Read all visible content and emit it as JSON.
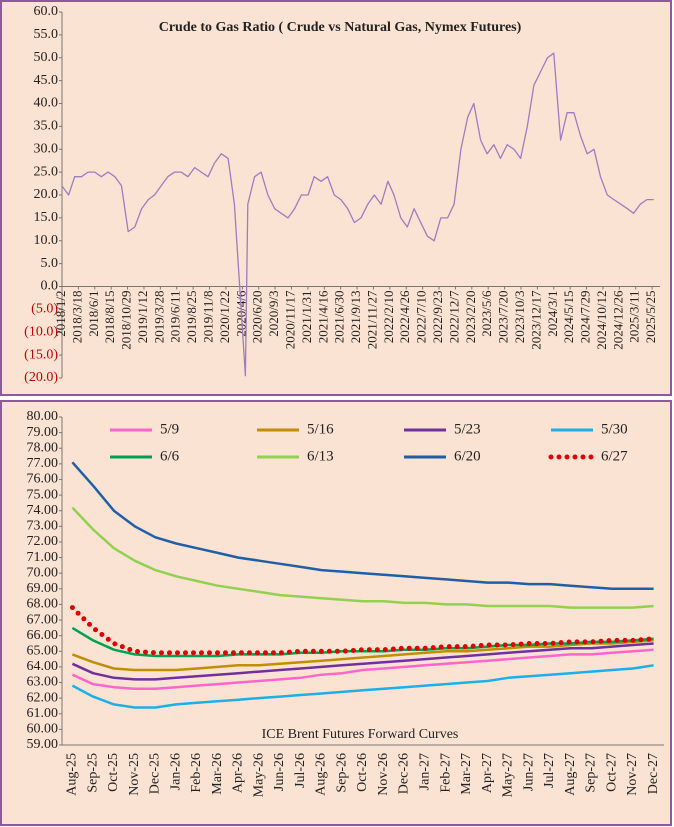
{
  "chart_data": [
    {
      "type": "line",
      "title": "Crude to Gas Ratio ( Crude vs Natural Gas, Nymex Futures)",
      "x": [
        "2018/1/1",
        "2018/2/1",
        "2018/3/1",
        "2018/4/1",
        "2018/5/1",
        "2018/6/1",
        "2018/7/1",
        "2018/8/1",
        "2018/9/1",
        "2018/10/1",
        "2018/11/1",
        "2018/12/1",
        "2019/1/1",
        "2019/2/1",
        "2019/3/1",
        "2019/4/1",
        "2019/5/1",
        "2019/6/1",
        "2019/7/1",
        "2019/8/1",
        "2019/9/1",
        "2019/10/1",
        "2019/11/1",
        "2019/12/1",
        "2020/1/1",
        "2020/2/1",
        "2020/3/1",
        "2020/4/20",
        "2020/5/1",
        "2020/6/1",
        "2020/7/1",
        "2020/8/1",
        "2020/9/1",
        "2020/10/1",
        "2020/11/1",
        "2020/12/1",
        "2021/1/1",
        "2021/2/1",
        "2021/3/1",
        "2021/4/1",
        "2021/5/1",
        "2021/6/1",
        "2021/7/1",
        "2021/8/1",
        "2021/9/1",
        "2021/10/1",
        "2021/11/1",
        "2021/12/1",
        "2022/1/1",
        "2022/2/1",
        "2022/3/1",
        "2022/4/1",
        "2022/5/1",
        "2022/6/1",
        "2022/7/1",
        "2022/8/1",
        "2022/9/1",
        "2022/10/1",
        "2022/11/1",
        "2022/12/1",
        "2023/1/1",
        "2023/2/1",
        "2023/3/1",
        "2023/4/1",
        "2023/5/1",
        "2023/6/1",
        "2023/7/1",
        "2023/8/1",
        "2023/9/1",
        "2023/10/1",
        "2023/11/1",
        "2023/12/1",
        "2024/1/1",
        "2024/2/1",
        "2024/3/1",
        "2024/4/1",
        "2024/5/1",
        "2024/6/1",
        "2024/7/1",
        "2024/8/1",
        "2024/9/1",
        "2024/10/1",
        "2024/11/1",
        "2024/12/1",
        "2025/1/1",
        "2025/2/1",
        "2025/3/1",
        "2025/4/1",
        "2025/5/1",
        "2025/6/1"
      ],
      "series": [
        {
          "color": "#9e7cc1",
          "values": [
            22,
            20,
            24,
            24,
            25,
            25,
            24,
            25,
            24,
            22,
            12,
            13,
            17,
            19,
            20,
            22,
            24,
            25,
            25,
            24,
            26,
            25,
            24,
            27,
            29,
            28,
            18,
            -19.5,
            18,
            24,
            25,
            20,
            17,
            16,
            15,
            17,
            20,
            20,
            24,
            23,
            24,
            20,
            19,
            17,
            14,
            15,
            18,
            20,
            18,
            23,
            20,
            15,
            13,
            17,
            14,
            11,
            10,
            15,
            15,
            18,
            30,
            37,
            40,
            32,
            29,
            31,
            28,
            31,
            30,
            28,
            35,
            44,
            47,
            50,
            51,
            32,
            38,
            38,
            33,
            29,
            30,
            24,
            20,
            19,
            18,
            17,
            16,
            18,
            19,
            19
          ]
        }
      ],
      "xticks": [
        "2018/1/2",
        "2018/3/18",
        "2018/6/1",
        "2018/8/15",
        "2018/10/29",
        "2019/1/12",
        "2019/3/28",
        "2019/6/11",
        "2019/8/25",
        "2019/11/8",
        "2020/1/22",
        "2020/4/6",
        "2020/6/20",
        "2020/9/3",
        "2020/11/17",
        "2021/1/31",
        "2021/4/16",
        "2021/6/30",
        "2021/9/13",
        "2021/11/27",
        "2022/2/10",
        "2022/4/26",
        "2022/7/10",
        "2022/9/23",
        "2022/12/7",
        "2023/2/20",
        "2023/5/6",
        "2023/7/20",
        "2023/10/3",
        "2023/12/17",
        "2024/3/1",
        "2024/5/15",
        "2024/7/29",
        "2024/10/12",
        "2024/12/26",
        "2025/3/11",
        "2025/5/25"
      ],
      "xlim": [
        "2018/1/2",
        "2025/6/30"
      ],
      "ylim": [
        -20,
        60
      ],
      "yticks": [
        {
          "value": -20,
          "label": "(20.0)"
        },
        {
          "value": -15,
          "label": "(15.0)"
        },
        {
          "value": -10,
          "label": "(10.0)"
        },
        {
          "value": -5,
          "label": "(5.0)"
        },
        {
          "value": 0,
          "label": "0.0"
        },
        {
          "value": 5,
          "label": "5.0"
        },
        {
          "value": 10,
          "label": "10.0"
        },
        {
          "value": 15,
          "label": "15.0"
        },
        {
          "value": 20,
          "label": "20.0"
        },
        {
          "value": 25,
          "label": "25.0"
        },
        {
          "value": 30,
          "label": "30.0"
        },
        {
          "value": 35,
          "label": "35.0"
        },
        {
          "value": 40,
          "label": "40.0"
        },
        {
          "value": 45,
          "label": "45.0"
        },
        {
          "value": 50,
          "label": "50.0"
        },
        {
          "value": 55,
          "label": "55.0"
        },
        {
          "value": 60,
          "label": "60.0"
        }
      ],
      "negative_label_color": "#c00000"
    },
    {
      "type": "line",
      "title": "ICE Brent Futures Forward Curves",
      "categories": [
        "Aug-25",
        "Sep-25",
        "Oct-25",
        "Nov-25",
        "Dec-25",
        "Jan-26",
        "Feb-26",
        "Mar-26",
        "Apr-26",
        "May-26",
        "Jun-26",
        "Jul-26",
        "Aug-26",
        "Sep-26",
        "Oct-26",
        "Nov-26",
        "Dec-26",
        "Jan-27",
        "Feb-27",
        "Mar-27",
        "Apr-27",
        "May-27",
        "Jun-27",
        "Jul-27",
        "Aug-27",
        "Sep-27",
        "Oct-27",
        "Nov-27",
        "Dec-27"
      ],
      "series": [
        {
          "name": "5/9",
          "color": "#ff66cc",
          "values": [
            63.5,
            62.9,
            62.7,
            62.6,
            62.6,
            62.7,
            62.8,
            62.9,
            63.0,
            63.1,
            63.2,
            63.3,
            63.5,
            63.6,
            63.8,
            63.9,
            64.0,
            64.1,
            64.2,
            64.3,
            64.4,
            64.5,
            64.6,
            64.7,
            64.8,
            64.8,
            64.9,
            65.0,
            65.1
          ]
        },
        {
          "name": "5/16",
          "color": "#bf8f00",
          "values": [
            64.8,
            64.3,
            63.9,
            63.8,
            63.8,
            63.8,
            63.9,
            64.0,
            64.1,
            64.1,
            64.2,
            64.3,
            64.4,
            64.5,
            64.6,
            64.7,
            64.8,
            64.9,
            65.0,
            65.0,
            65.1,
            65.2,
            65.3,
            65.3,
            65.4,
            65.5,
            65.5,
            65.6,
            65.7
          ]
        },
        {
          "name": "5/23",
          "color": "#7030a0",
          "values": [
            64.2,
            63.6,
            63.3,
            63.2,
            63.2,
            63.3,
            63.4,
            63.5,
            63.6,
            63.7,
            63.8,
            63.9,
            64.0,
            64.1,
            64.2,
            64.3,
            64.4,
            64.5,
            64.6,
            64.7,
            64.8,
            64.9,
            65.0,
            65.1,
            65.2,
            65.2,
            65.3,
            65.4,
            65.5
          ]
        },
        {
          "name": "5/30",
          "color": "#1ab0e8",
          "values": [
            62.8,
            62.1,
            61.6,
            61.4,
            61.4,
            61.6,
            61.7,
            61.8,
            61.9,
            62.0,
            62.1,
            62.2,
            62.3,
            62.4,
            62.5,
            62.6,
            62.7,
            62.8,
            62.9,
            63.0,
            63.1,
            63.3,
            63.4,
            63.5,
            63.6,
            63.7,
            63.8,
            63.9,
            64.1
          ]
        },
        {
          "name": "6/6",
          "color": "#00a050",
          "values": [
            66.5,
            65.7,
            65.1,
            64.8,
            64.7,
            64.7,
            64.7,
            64.7,
            64.8,
            64.8,
            64.8,
            64.9,
            64.9,
            65.0,
            65.0,
            65.0,
            65.1,
            65.1,
            65.2,
            65.2,
            65.3,
            65.4,
            65.4,
            65.5,
            65.5,
            65.6,
            65.6,
            65.7,
            65.8
          ]
        },
        {
          "name": "6/13",
          "color": "#92d050",
          "values": [
            74.2,
            72.8,
            71.6,
            70.8,
            70.2,
            69.8,
            69.5,
            69.2,
            69.0,
            68.8,
            68.6,
            68.5,
            68.4,
            68.3,
            68.2,
            68.2,
            68.1,
            68.1,
            68.0,
            68.0,
            67.9,
            67.9,
            67.9,
            67.9,
            67.8,
            67.8,
            67.8,
            67.8,
            67.9
          ]
        },
        {
          "name": "6/20",
          "color": "#1f5fa8",
          "values": [
            77.1,
            75.6,
            74.0,
            73.0,
            72.3,
            71.9,
            71.6,
            71.3,
            71.0,
            70.8,
            70.6,
            70.4,
            70.2,
            70.1,
            70.0,
            69.9,
            69.8,
            69.7,
            69.6,
            69.5,
            69.4,
            69.4,
            69.3,
            69.3,
            69.2,
            69.1,
            69.0,
            69.0,
            69.0
          ]
        },
        {
          "name": "6/27",
          "color": "#e00000",
          "style": "dotted",
          "values": [
            67.8,
            66.5,
            65.5,
            65.0,
            64.9,
            64.9,
            64.9,
            64.9,
            64.9,
            64.9,
            64.9,
            65.0,
            65.0,
            65.0,
            65.1,
            65.1,
            65.2,
            65.2,
            65.3,
            65.3,
            65.4,
            65.4,
            65.5,
            65.5,
            65.6,
            65.6,
            65.7,
            65.7,
            65.8
          ]
        }
      ],
      "ylim": [
        59,
        80
      ],
      "yticks": [
        {
          "value": 59,
          "label": "59.00"
        },
        {
          "value": 60,
          "label": "60.00"
        },
        {
          "value": 61,
          "label": "61.00"
        },
        {
          "value": 62,
          "label": "62.00"
        },
        {
          "value": 63,
          "label": "63.00"
        },
        {
          "value": 64,
          "label": "64.00"
        },
        {
          "value": 65,
          "label": "65.00"
        },
        {
          "value": 66,
          "label": "66.00"
        },
        {
          "value": 67,
          "label": "67.00"
        },
        {
          "value": 68,
          "label": "68.00"
        },
        {
          "value": 69,
          "label": "69.00"
        },
        {
          "value": 70,
          "label": "70.00"
        },
        {
          "value": 71,
          "label": "71.00"
        },
        {
          "value": 72,
          "label": "72.00"
        },
        {
          "value": 73,
          "label": "73.00"
        },
        {
          "value": 74,
          "label": "74.00"
        },
        {
          "value": 75,
          "label": "75.00"
        },
        {
          "value": 76,
          "label": "76.00"
        },
        {
          "value": 77,
          "label": "77.00"
        },
        {
          "value": 78,
          "label": "78.00"
        },
        {
          "value": 79,
          "label": "79.00"
        },
        {
          "value": 80,
          "label": "80.00"
        }
      ],
      "legend": "top"
    }
  ]
}
